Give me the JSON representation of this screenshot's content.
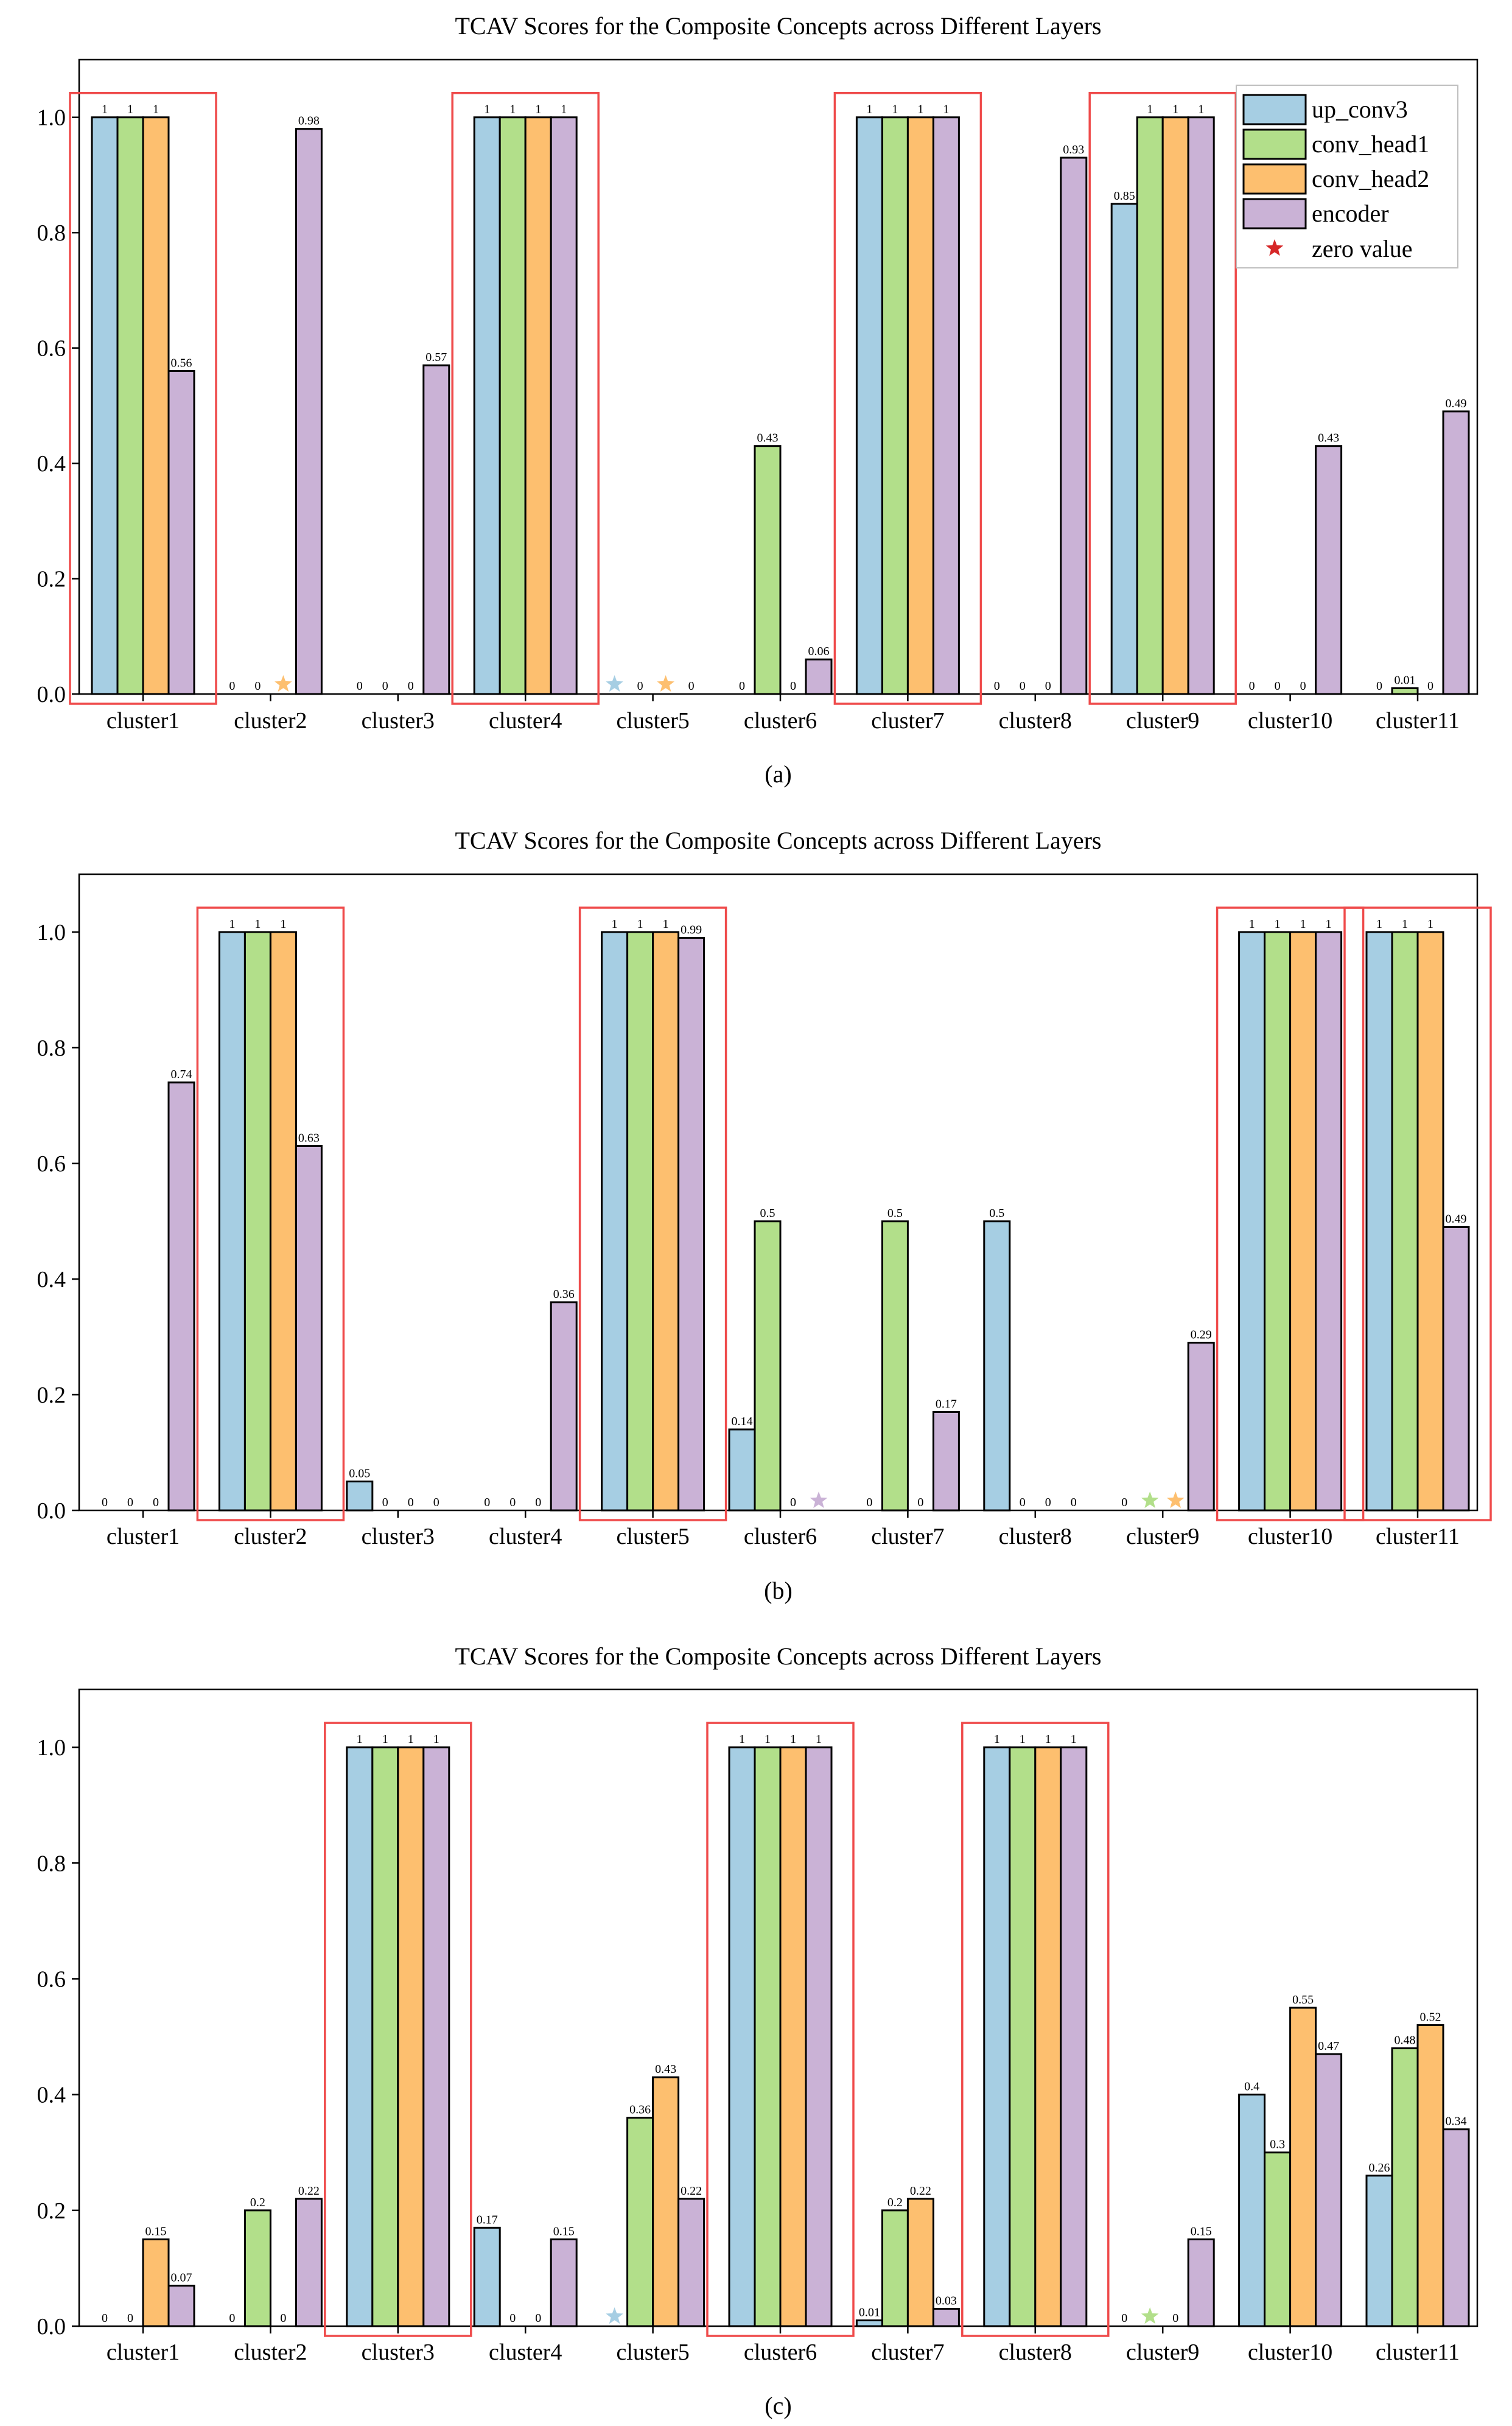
{
  "figure": {
    "captions": [
      "(a)",
      "(b)",
      "(c)"
    ],
    "series_colors": [
      "#a6cee3",
      "#b2df8a",
      "#fdbf6f",
      "#cab2d6"
    ],
    "box_color": "#ef4b4b",
    "zero_marker_color": "#d62728"
  },
  "legend": {
    "entries": [
      "up_conv3",
      "conv_head1",
      "conv_head2",
      "encoder"
    ],
    "zero_label": "zero value"
  },
  "chart_data": [
    {
      "type": "bar",
      "title": "TCAV Scores for the Composite Concepts across Different Layers",
      "caption": "(a)",
      "categories": [
        "cluster1",
        "cluster2",
        "cluster3",
        "cluster4",
        "cluster5",
        "cluster6",
        "cluster7",
        "cluster8",
        "cluster9",
        "cluster10",
        "cluster11"
      ],
      "ylim": [
        0,
        1.1
      ],
      "yticks": [
        "0.0",
        "0.2",
        "0.4",
        "0.6",
        "0.8",
        "1.0"
      ],
      "series": [
        {
          "name": "up_conv3",
          "values": [
            1,
            0,
            0,
            1,
            0,
            0,
            1,
            0,
            0.85,
            0,
            0
          ],
          "labels": [
            "1",
            "0",
            "0",
            "1",
            "",
            "0",
            "1",
            "0",
            "0.85",
            "0",
            "0"
          ],
          "stars": [
            4
          ]
        },
        {
          "name": "conv_head1",
          "values": [
            1,
            0,
            0,
            1,
            0,
            0.43,
            1,
            0,
            1,
            0,
            0.01
          ],
          "labels": [
            "1",
            "0",
            "0",
            "1",
            "0",
            "0.43",
            "1",
            "0",
            "1",
            "0",
            "0.01"
          ],
          "stars": []
        },
        {
          "name": "conv_head2",
          "values": [
            1,
            0,
            0,
            1,
            0,
            0,
            1,
            0,
            1,
            0,
            0
          ],
          "labels": [
            "1",
            "",
            "0",
            "1",
            "",
            "0",
            "1",
            "0",
            "1",
            "0",
            "0"
          ],
          "stars": [
            1,
            4
          ]
        },
        {
          "name": "encoder",
          "values": [
            0.56,
            0.98,
            0.57,
            1,
            0,
            0.06,
            1,
            0.93,
            1,
            0.43,
            0.49
          ],
          "labels": [
            "0.56",
            "0.98",
            "0.57",
            "1",
            "0",
            "0.06",
            "1",
            "0.93",
            "1",
            "0.43",
            "0.49"
          ],
          "stars": []
        }
      ],
      "highlight": [
        0,
        3,
        6,
        8
      ],
      "legend": true
    },
    {
      "type": "bar",
      "title": "TCAV Scores for the Composite Concepts across Different Layers",
      "caption": "(b)",
      "categories": [
        "cluster1",
        "cluster2",
        "cluster3",
        "cluster4",
        "cluster5",
        "cluster6",
        "cluster7",
        "cluster8",
        "cluster9",
        "cluster10",
        "cluster11"
      ],
      "ylim": [
        0,
        1.1
      ],
      "yticks": [
        "0.0",
        "0.2",
        "0.4",
        "0.6",
        "0.8",
        "1.0"
      ],
      "series": [
        {
          "name": "up_conv3",
          "values": [
            0,
            1,
            0.05,
            0,
            1,
            0.14,
            0,
            0.5,
            0,
            1,
            1
          ],
          "labels": [
            "0",
            "1",
            "0.05",
            "0",
            "1",
            "0.14",
            "0",
            "0.5",
            "0",
            "1",
            "1"
          ],
          "stars": []
        },
        {
          "name": "conv_head1",
          "values": [
            0,
            1,
            0,
            0,
            1,
            0.5,
            0.5,
            0,
            0,
            1,
            1
          ],
          "labels": [
            "0",
            "1",
            "0",
            "0",
            "1",
            "0.5",
            "0.5",
            "0",
            "",
            "1",
            "1"
          ],
          "stars": [
            8
          ]
        },
        {
          "name": "conv_head2",
          "values": [
            0,
            1,
            0,
            0,
            1,
            0,
            0,
            0,
            0,
            1,
            1
          ],
          "labels": [
            "0",
            "1",
            "0",
            "0",
            "1",
            "0",
            "0",
            "0",
            "",
            "1",
            "1"
          ],
          "stars": [
            8
          ]
        },
        {
          "name": "encoder",
          "values": [
            0.74,
            0.63,
            0,
            0.36,
            0.99,
            0,
            0.17,
            0,
            0.29,
            1,
            0.49
          ],
          "labels": [
            "0.74",
            "0.63",
            "0",
            "0.36",
            "0.99",
            "",
            "0.17",
            "0",
            "0.29",
            "1",
            "0.49"
          ],
          "stars": [
            5
          ]
        }
      ],
      "highlight": [
        1,
        4,
        9,
        10
      ],
      "legend": false
    },
    {
      "type": "bar",
      "title": "TCAV Scores for the Composite Concepts across Different Layers",
      "caption": "(c)",
      "categories": [
        "cluster1",
        "cluster2",
        "cluster3",
        "cluster4",
        "cluster5",
        "cluster6",
        "cluster7",
        "cluster8",
        "cluster9",
        "cluster10",
        "cluster11"
      ],
      "ylim": [
        0,
        1.1
      ],
      "yticks": [
        "0.0",
        "0.2",
        "0.4",
        "0.6",
        "0.8",
        "1.0"
      ],
      "series": [
        {
          "name": "up_conv3",
          "values": [
            0,
            0,
            1,
            0.17,
            0,
            1,
            0.01,
            1,
            0,
            0.4,
            0.26
          ],
          "labels": [
            "0",
            "0",
            "1",
            "0.17",
            "",
            "1",
            "0.01",
            "1",
            "0",
            "0.4",
            "0.26"
          ],
          "stars": [
            4
          ]
        },
        {
          "name": "conv_head1",
          "values": [
            0,
            0.2,
            1,
            0,
            0.36,
            1,
            0.2,
            1,
            0,
            0.3,
            0.48
          ],
          "labels": [
            "0",
            "0.2",
            "1",
            "0",
            "0.36",
            "1",
            "0.2",
            "1",
            "",
            "0.3",
            "0.48"
          ],
          "stars": [
            8
          ]
        },
        {
          "name": "conv_head2",
          "values": [
            0.15,
            0,
            1,
            0,
            0.43,
            1,
            0.22,
            1,
            0,
            0.55,
            0.52
          ],
          "labels": [
            "0.15",
            "0",
            "1",
            "0",
            "0.43",
            "1",
            "0.22",
            "1",
            "0",
            "0.55",
            "0.52"
          ],
          "stars": []
        },
        {
          "name": "encoder",
          "values": [
            0.07,
            0.22,
            1,
            0.15,
            0.22,
            1,
            0.03,
            1,
            0.15,
            0.47,
            0.34
          ],
          "labels": [
            "0.07",
            "0.22",
            "1",
            "0.15",
            "0.22",
            "1",
            "0.03",
            "1",
            "0.15",
            "0.47",
            "0.34"
          ],
          "stars": []
        }
      ],
      "highlight": [
        2,
        5,
        7
      ],
      "legend": false
    }
  ]
}
